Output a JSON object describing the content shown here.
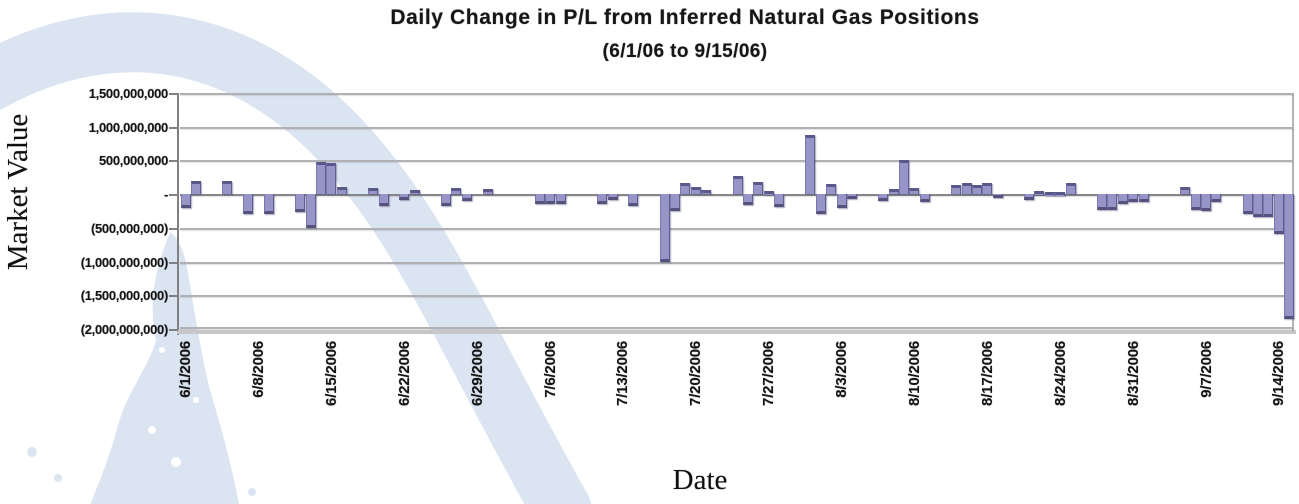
{
  "title": "Daily Change in P/L from Inferred Natural Gas Positions",
  "subtitle": "(6/1/06 to 9/15/06)",
  "colors": {
    "bar_fill": "#9794c8",
    "bar_shadow": "#55527d",
    "gridline": "#b0b0b5",
    "zero_line": "#85858a",
    "axis_line": "#7f7f84",
    "watermark_blue": "#dbe5f2",
    "text": "#141414"
  },
  "chart_data": {
    "type": "bar",
    "title": "Daily Change in P/L from Inferred Natural Gas Positions",
    "subtitle": "(6/1/06 to 9/15/06)",
    "xlabel": "Date",
    "ylabel": "Market Value",
    "grid": "horizontal gridlines on, category axis labels rotated 90",
    "legend": "none",
    "values_unit": "USD (value_musd given in millions of dollars, estimated from gridlines)",
    "ylim": [
      -2000000000,
      1500000000
    ],
    "y_tick_values_musd": [
      1500,
      1000,
      500,
      0,
      -500,
      -1000,
      -1500,
      -2000
    ],
    "y_tick_labels": [
      "1,500,000,000",
      "1,000,000,000",
      "500,000,000",
      "-",
      "(500,000,000)",
      "(1,000,000,000)",
      "(1,500,000,000)",
      "(2,000,000,000)"
    ],
    "x_start_date": "6/1/2006",
    "x_range_days": 107,
    "x_tick_interval_days": 7,
    "x_tick_labels": [
      "6/1/2006",
      "6/8/2006",
      "6/15/2006",
      "6/22/2006",
      "6/29/2006",
      "7/6/2006",
      "7/13/2006",
      "7/20/2006",
      "7/27/2006",
      "8/3/2006",
      "8/10/2006",
      "8/17/2006",
      "8/24/2006",
      "8/31/2006",
      "9/7/2006",
      "9/14/2006"
    ],
    "points": [
      {
        "date": "6/1/2006",
        "value_musd": -200
      },
      {
        "date": "6/2/2006",
        "value_musd": 200
      },
      {
        "date": "6/5/2006",
        "value_musd": 190
      },
      {
        "date": "6/7/2006",
        "value_musd": -300
      },
      {
        "date": "6/9/2006",
        "value_musd": -300
      },
      {
        "date": "6/12/2006",
        "value_musd": -270
      },
      {
        "date": "6/13/2006",
        "value_musd": -500
      },
      {
        "date": "6/14/2006",
        "value_musd": 470
      },
      {
        "date": "6/15/2006",
        "value_musd": 460
      },
      {
        "date": "6/16/2006",
        "value_musd": 110
      },
      {
        "date": "6/19/2006",
        "value_musd": 90
      },
      {
        "date": "6/20/2006",
        "value_musd": -170
      },
      {
        "date": "6/22/2006",
        "value_musd": -90
      },
      {
        "date": "6/23/2006",
        "value_musd": 60
      },
      {
        "date": "6/26/2006",
        "value_musd": -180
      },
      {
        "date": "6/27/2006",
        "value_musd": 90
      },
      {
        "date": "6/28/2006",
        "value_musd": -100
      },
      {
        "date": "6/30/2006",
        "value_musd": 75
      },
      {
        "date": "7/5/2006",
        "value_musd": -150
      },
      {
        "date": "7/6/2006",
        "value_musd": -150
      },
      {
        "date": "7/7/2006",
        "value_musd": -150
      },
      {
        "date": "7/11/2006",
        "value_musd": -140
      },
      {
        "date": "7/12/2006",
        "value_musd": -90
      },
      {
        "date": "7/14/2006",
        "value_musd": -170
      },
      {
        "date": "7/17/2006",
        "value_musd": -1000
      },
      {
        "date": "7/18/2006",
        "value_musd": -250
      },
      {
        "date": "7/19/2006",
        "value_musd": 170
      },
      {
        "date": "7/20/2006",
        "value_musd": 100
      },
      {
        "date": "7/21/2006",
        "value_musd": 60
      },
      {
        "date": "7/24/2006",
        "value_musd": 270
      },
      {
        "date": "7/25/2006",
        "value_musd": -165
      },
      {
        "date": "7/26/2006",
        "value_musd": 185
      },
      {
        "date": "7/27/2006",
        "value_musd": 50
      },
      {
        "date": "7/28/2006",
        "value_musd": -190
      },
      {
        "date": "7/31/2006",
        "value_musd": 870
      },
      {
        "date": "8/1/2006",
        "value_musd": -290
      },
      {
        "date": "8/2/2006",
        "value_musd": 150
      },
      {
        "date": "8/3/2006",
        "value_musd": -200
      },
      {
        "date": "8/4/2006",
        "value_musd": -75
      },
      {
        "date": "8/7/2006",
        "value_musd": -100
      },
      {
        "date": "8/8/2006",
        "value_musd": 70
      },
      {
        "date": "8/9/2006",
        "value_musd": 500
      },
      {
        "date": "8/10/2006",
        "value_musd": 90
      },
      {
        "date": "8/11/2006",
        "value_musd": -120
      },
      {
        "date": "8/14/2006",
        "value_musd": 135
      },
      {
        "date": "8/15/2006",
        "value_musd": 170
      },
      {
        "date": "8/16/2006",
        "value_musd": 135
      },
      {
        "date": "8/17/2006",
        "value_musd": 160
      },
      {
        "date": "8/18/2006",
        "value_musd": -50
      },
      {
        "date": "8/21/2006",
        "value_musd": -90
      },
      {
        "date": "8/22/2006",
        "value_musd": 40
      },
      {
        "date": "8/23/2006",
        "value_musd": 35
      },
      {
        "date": "8/24/2006",
        "value_musd": 35
      },
      {
        "date": "8/25/2006",
        "value_musd": 160
      },
      {
        "date": "8/28/2006",
        "value_musd": -230
      },
      {
        "date": "8/29/2006",
        "value_musd": -230
      },
      {
        "date": "8/30/2006",
        "value_musd": -150
      },
      {
        "date": "8/31/2006",
        "value_musd": -120
      },
      {
        "date": "9/1/2006",
        "value_musd": -110
      },
      {
        "date": "9/5/2006",
        "value_musd": 110
      },
      {
        "date": "9/6/2006",
        "value_musd": -230
      },
      {
        "date": "9/7/2006",
        "value_musd": -250
      },
      {
        "date": "9/8/2006",
        "value_musd": -115
      },
      {
        "date": "9/11/2006",
        "value_musd": -300
      },
      {
        "date": "9/12/2006",
        "value_musd": -340
      },
      {
        "date": "9/13/2006",
        "value_musd": -340
      },
      {
        "date": "9/14/2006",
        "value_musd": -590
      },
      {
        "date": "9/15/2006",
        "value_musd": -1855
      }
    ]
  }
}
